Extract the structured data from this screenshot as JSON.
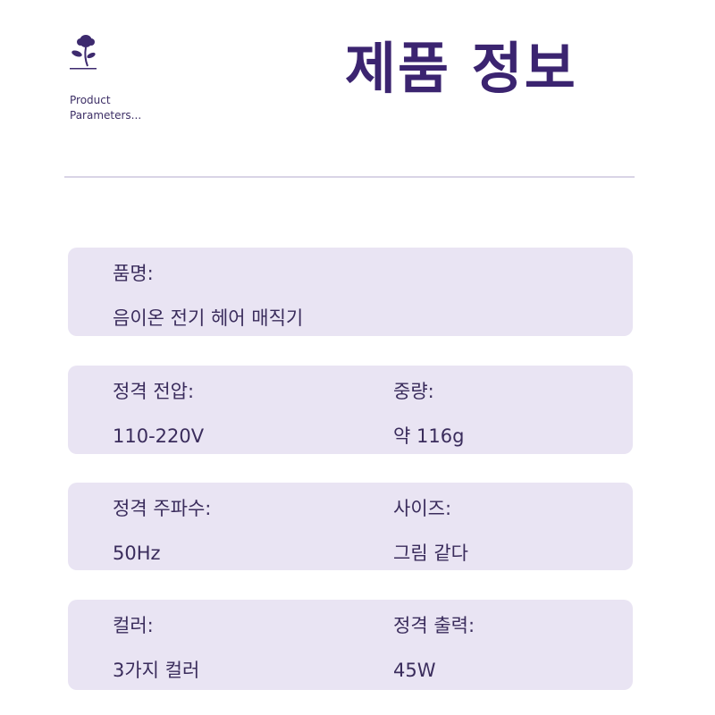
{
  "header": {
    "title": "제품 정보",
    "subtitle_line1": "Product",
    "subtitle_line2": "Parameters...",
    "logo_icon": "rose-icon"
  },
  "colors": {
    "title": "#3b2470",
    "card_bg": "#e9e4f3",
    "text": "#3a2c5c"
  },
  "cards": [
    {
      "left": {
        "label": "품명:",
        "value": "음이온 전기 헤어 매직기"
      }
    },
    {
      "left": {
        "label": "정격 전압:",
        "value": "110-220V"
      },
      "right": {
        "label": "중량:",
        "value": "약 116g"
      }
    },
    {
      "left": {
        "label": "정격 주파수:",
        "value": "50Hz"
      },
      "right": {
        "label": "사이즈:",
        "value": "그림 같다"
      }
    },
    {
      "left": {
        "label": "컬러:",
        "value": "3가지 컬러"
      },
      "right": {
        "label": "정격 출력:",
        "value": "45W"
      }
    }
  ]
}
